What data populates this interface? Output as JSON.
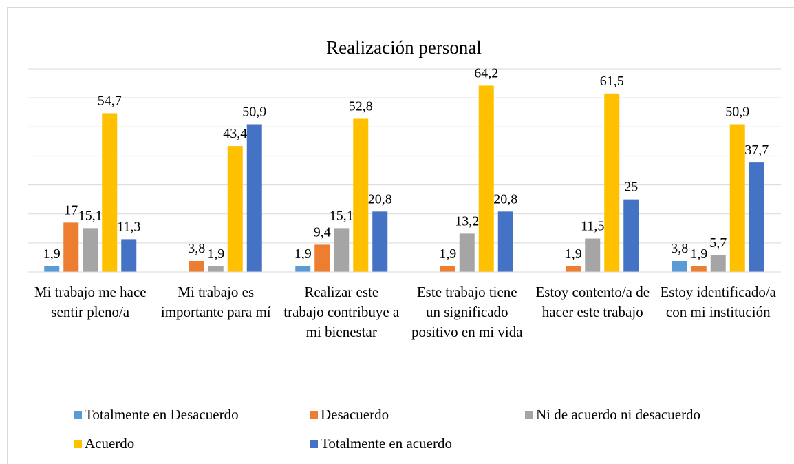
{
  "chart_data": {
    "type": "bar",
    "title": "Realización personal",
    "categories": [
      "Mi trabajo me hace sentir pleno/a",
      "Mi trabajo es importante para mí",
      "Realizar este trabajo contribuye a mi bienestar",
      "Este trabajo tiene un significado positivo en mi vida",
      "Estoy contento/a de hacer este trabajo",
      "Estoy identificado/a con mi institución"
    ],
    "series": [
      {
        "name": "Totalmente en Desacuerdo",
        "color": "#5b9bd5",
        "values": [
          1.9,
          null,
          1.9,
          null,
          null,
          3.8
        ],
        "value_labels": [
          "1,9",
          null,
          "1,9",
          null,
          null,
          "3,8"
        ]
      },
      {
        "name": "Desacuerdo",
        "color": "#ed7d31",
        "values": [
          17,
          3.8,
          9.4,
          1.9,
          1.9,
          1.9
        ],
        "value_labels": [
          "17",
          "3,8",
          "9,4",
          "1,9",
          "1,9",
          "1,9"
        ]
      },
      {
        "name": "Ni de acuerdo ni desacuerdo",
        "color": "#a5a5a5",
        "values": [
          15.1,
          1.9,
          15.1,
          13.2,
          11.5,
          5.7
        ],
        "value_labels": [
          "15,1",
          "1,9",
          "15,1",
          "13,2",
          "11,5",
          "5,7"
        ]
      },
      {
        "name": "Acuerdo",
        "color": "#ffc000",
        "values": [
          54.7,
          43.4,
          52.8,
          64.2,
          61.5,
          50.9
        ],
        "value_labels": [
          "54,7",
          "43,4",
          "52,8",
          "64,2",
          "61,5",
          "50,9"
        ]
      },
      {
        "name": "Totalmente en acuerdo",
        "color": "#4472c4",
        "values": [
          11.3,
          50.9,
          20.8,
          20.8,
          25,
          37.7
        ],
        "value_labels": [
          "11,3",
          "50,9",
          "20,8",
          "20,8",
          "25",
          "37,7"
        ]
      }
    ],
    "ylim": [
      0,
      70
    ],
    "yticks": [
      0,
      10,
      20,
      30,
      40,
      50,
      60,
      70
    ],
    "grid": true
  }
}
